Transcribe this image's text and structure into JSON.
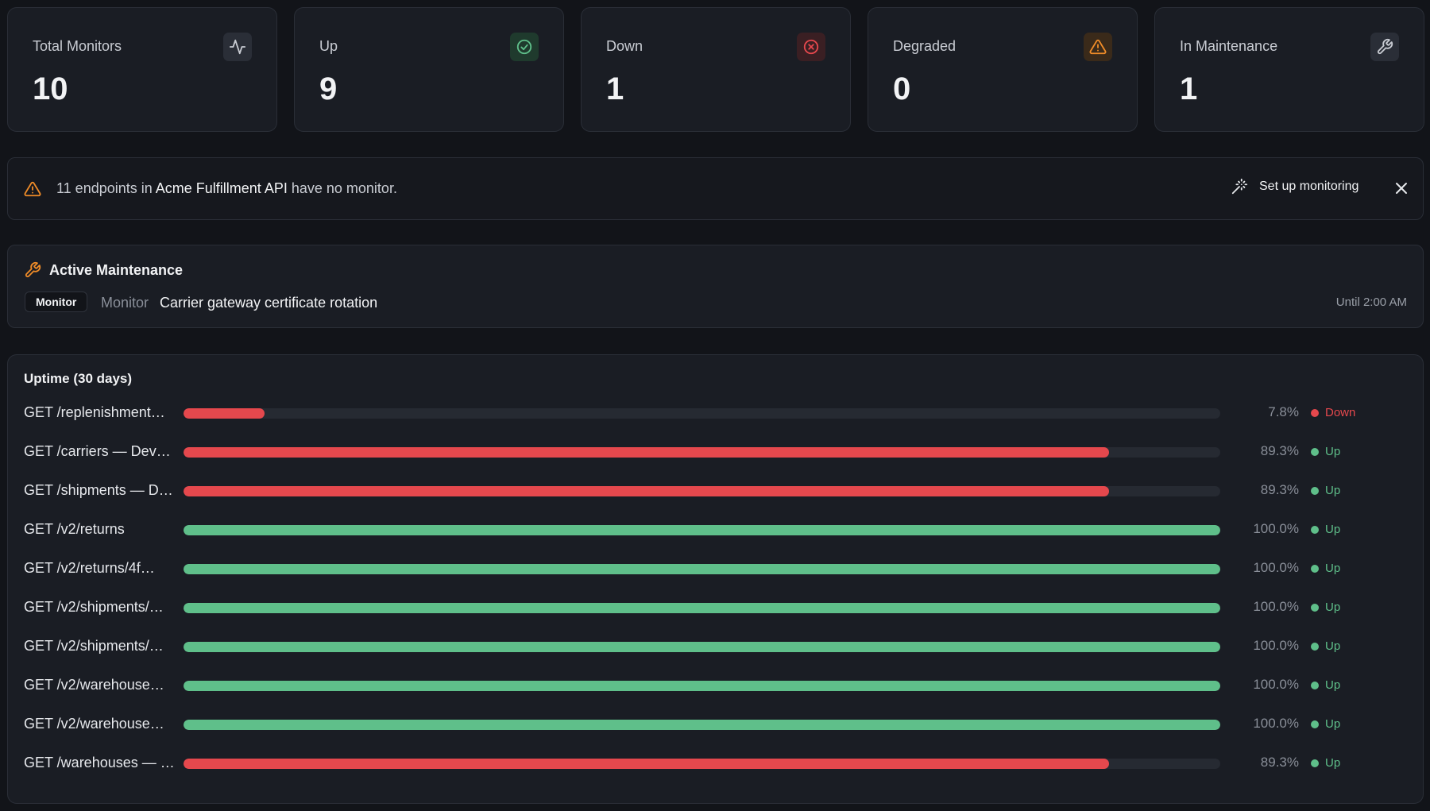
{
  "colors": {
    "up": "#5fbf8a",
    "down": "#e5484d",
    "warning": "#f08c28",
    "neutral": "#8a8f99"
  },
  "stats": [
    {
      "label": "Total Monitors",
      "value": "10",
      "icon": "activity-icon"
    },
    {
      "label": "Up",
      "value": "9",
      "icon": "check-circle-icon"
    },
    {
      "label": "Down",
      "value": "1",
      "icon": "x-circle-icon"
    },
    {
      "label": "Degraded",
      "value": "0",
      "icon": "alert-triangle-icon"
    },
    {
      "label": "In Maintenance",
      "value": "1",
      "icon": "wrench-icon"
    }
  ],
  "banner": {
    "prefix": "11 endpoints in",
    "api_name": "Acme Fulfillment API",
    "suffix": "have no monitor.",
    "action_label": "Set up monitoring"
  },
  "maintenance": {
    "title": "Active Maintenance",
    "tag": "Monitor",
    "type": "Monitor",
    "name": "Carrier gateway certificate rotation",
    "until": "Until 2:00 AM"
  },
  "uptime": {
    "title": "Uptime (30 days)",
    "rows": [
      {
        "name": "GET /replenishment…",
        "uptime": 7.8,
        "pct": "7.8%",
        "status": "Down"
      },
      {
        "name": "GET /carriers — Dev…",
        "uptime": 89.3,
        "pct": "89.3%",
        "status": "Up"
      },
      {
        "name": "GET /shipments — D…",
        "uptime": 89.3,
        "pct": "89.3%",
        "status": "Up"
      },
      {
        "name": "GET /v2/returns",
        "uptime": 100.0,
        "pct": "100.0%",
        "status": "Up"
      },
      {
        "name": "GET /v2/returns/4f…",
        "uptime": 100.0,
        "pct": "100.0%",
        "status": "Up"
      },
      {
        "name": "GET /v2/shipments/…",
        "uptime": 100.0,
        "pct": "100.0%",
        "status": "Up"
      },
      {
        "name": "GET /v2/shipments/…",
        "uptime": 100.0,
        "pct": "100.0%",
        "status": "Up"
      },
      {
        "name": "GET /v2/warehouse…",
        "uptime": 100.0,
        "pct": "100.0%",
        "status": "Up"
      },
      {
        "name": "GET /v2/warehouse…",
        "uptime": 100.0,
        "pct": "100.0%",
        "status": "Up"
      },
      {
        "name": "GET /warehouses — …",
        "uptime": 89.3,
        "pct": "89.3%",
        "status": "Up"
      }
    ]
  }
}
